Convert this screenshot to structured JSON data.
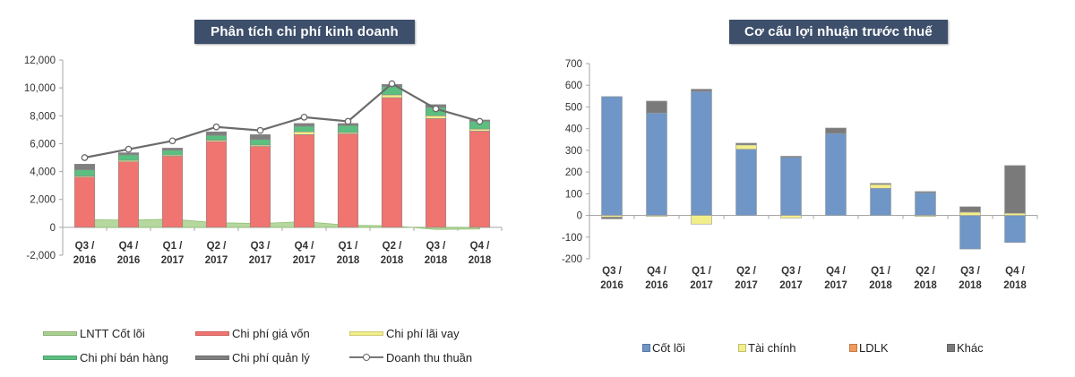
{
  "chart_data": [
    {
      "type": "bar",
      "subtype": "stacked-bar-with-line-and-area",
      "title": "Phân tích chi phí kinh doanh",
      "xlabel": "",
      "ylabel": "",
      "ylim": [
        -2000,
        12000
      ],
      "yticks": [
        -2000,
        0,
        2000,
        4000,
        6000,
        8000,
        10000,
        12000
      ],
      "ytick_labels": [
        "-2,000",
        "0",
        "2,000",
        "4,000",
        "6,000",
        "8,000",
        "10,000",
        "12,000"
      ],
      "categories": [
        [
          "Q3 /",
          "2016"
        ],
        [
          "Q4 /",
          "2016"
        ],
        [
          "Q1 /",
          "2017"
        ],
        [
          "Q2 /",
          "2017"
        ],
        [
          "Q3 /",
          "2017"
        ],
        [
          "Q4 /",
          "2017"
        ],
        [
          "Q1 /",
          "2018"
        ],
        [
          "Q2 /",
          "2018"
        ],
        [
          "Q3 /",
          "2018"
        ],
        [
          "Q4 /",
          "2018"
        ]
      ],
      "grid": false,
      "legend_position": "bottom",
      "series": [
        {
          "name": "LNTT Cốt lõi",
          "kind": "area",
          "color": "#a9d18e",
          "values": [
            550,
            520,
            580,
            330,
            270,
            410,
            150,
            110,
            -150,
            -120
          ]
        },
        {
          "name": "Chi phí giá vốn",
          "kind": "bar",
          "color": "#f07470",
          "values": [
            3600,
            4700,
            5100,
            6150,
            5800,
            6650,
            6700,
            9300,
            7800,
            6900
          ]
        },
        {
          "name": "Chi phí lãi vay",
          "kind": "bar",
          "color": "#f2ee8a",
          "values": [
            80,
            100,
            80,
            100,
            100,
            200,
            100,
            200,
            200,
            150
          ]
        },
        {
          "name": "Chi phí bán hàng",
          "kind": "bar",
          "color": "#5bbf7f",
          "values": [
            450,
            400,
            350,
            350,
            400,
            400,
            500,
            600,
            600,
            550
          ]
        },
        {
          "name": "Chi phí quản lý",
          "kind": "bar",
          "color": "#7f7f7f",
          "values": [
            400,
            150,
            150,
            250,
            350,
            200,
            150,
            150,
            200,
            100
          ]
        },
        {
          "name": "Doanh thu thuần",
          "kind": "line",
          "color": "#666666",
          "values": [
            5000,
            5600,
            6200,
            7200,
            6950,
            7900,
            7600,
            10300,
            8500,
            7600
          ]
        }
      ],
      "legend": [
        {
          "label": "LNTT Cốt lõi",
          "color": "#a9d18e",
          "style": "bar"
        },
        {
          "label": "Chi phí giá vốn",
          "color": "#f07470",
          "style": "bar"
        },
        {
          "label": "Chi phí lãi vay",
          "color": "#f2ee8a",
          "style": "bar"
        },
        {
          "label": "Chi phí bán hàng",
          "color": "#5bbf7f",
          "style": "bar"
        },
        {
          "label": "Chi phí quản lý",
          "color": "#7f7f7f",
          "style": "bar"
        },
        {
          "label": "Doanh thu thuần",
          "color": "#666666",
          "style": "line-marker"
        }
      ]
    },
    {
      "type": "bar",
      "subtype": "stacked-bar",
      "title": "Cơ cấu lợi nhuận trước thuế",
      "xlabel": "",
      "ylabel": "",
      "ylim": [
        -200,
        700
      ],
      "yticks": [
        -200,
        -100,
        0,
        100,
        200,
        300,
        400,
        500,
        600,
        700
      ],
      "ytick_labels": [
        "-200",
        "-100",
        "0",
        "100",
        "200",
        "300",
        "400",
        "500",
        "600",
        "700"
      ],
      "categories": [
        [
          "Q3 /",
          "2016"
        ],
        [
          "Q4 /",
          "2016"
        ],
        [
          "Q1 /",
          "2017"
        ],
        [
          "Q2 /",
          "2017"
        ],
        [
          "Q3 /",
          "2017"
        ],
        [
          "Q4 /",
          "2017"
        ],
        [
          "Q1 /",
          "2018"
        ],
        [
          "Q2 /",
          "2018"
        ],
        [
          "Q3 /",
          "2018"
        ],
        [
          "Q4 /",
          "2018"
        ]
      ],
      "grid": false,
      "legend_position": "bottom",
      "series": [
        {
          "name": "Cốt lõi",
          "color": "#6f96c6",
          "values": [
            548,
            472,
            572,
            305,
            268,
            378,
            125,
            105,
            -155,
            -125
          ]
        },
        {
          "name": "Tài chính",
          "color": "#f2ee8a",
          "values": [
            -8,
            -5,
            -40,
            20,
            -12,
            0,
            18,
            -5,
            15,
            10
          ]
        },
        {
          "name": "LDLK",
          "color": "#f29a5a",
          "values": [
            0,
            0,
            0,
            0,
            0,
            0,
            0,
            0,
            0,
            0
          ]
        },
        {
          "name": "Khác",
          "color": "#7a7a7a",
          "values": [
            -8,
            55,
            10,
            8,
            5,
            25,
            5,
            5,
            25,
            220
          ]
        }
      ],
      "legend": [
        {
          "label": "Cốt lõi",
          "color": "#6f96c6"
        },
        {
          "label": "Tài chính",
          "color": "#f2ee8a"
        },
        {
          "label": "LDLK",
          "color": "#f29a5a"
        },
        {
          "label": "Khác",
          "color": "#7a7a7a"
        }
      ]
    }
  ],
  "colors": {
    "title_bg": "#3d4f6a",
    "title_text": "#ffffff",
    "axis": "#a6a6a6"
  }
}
